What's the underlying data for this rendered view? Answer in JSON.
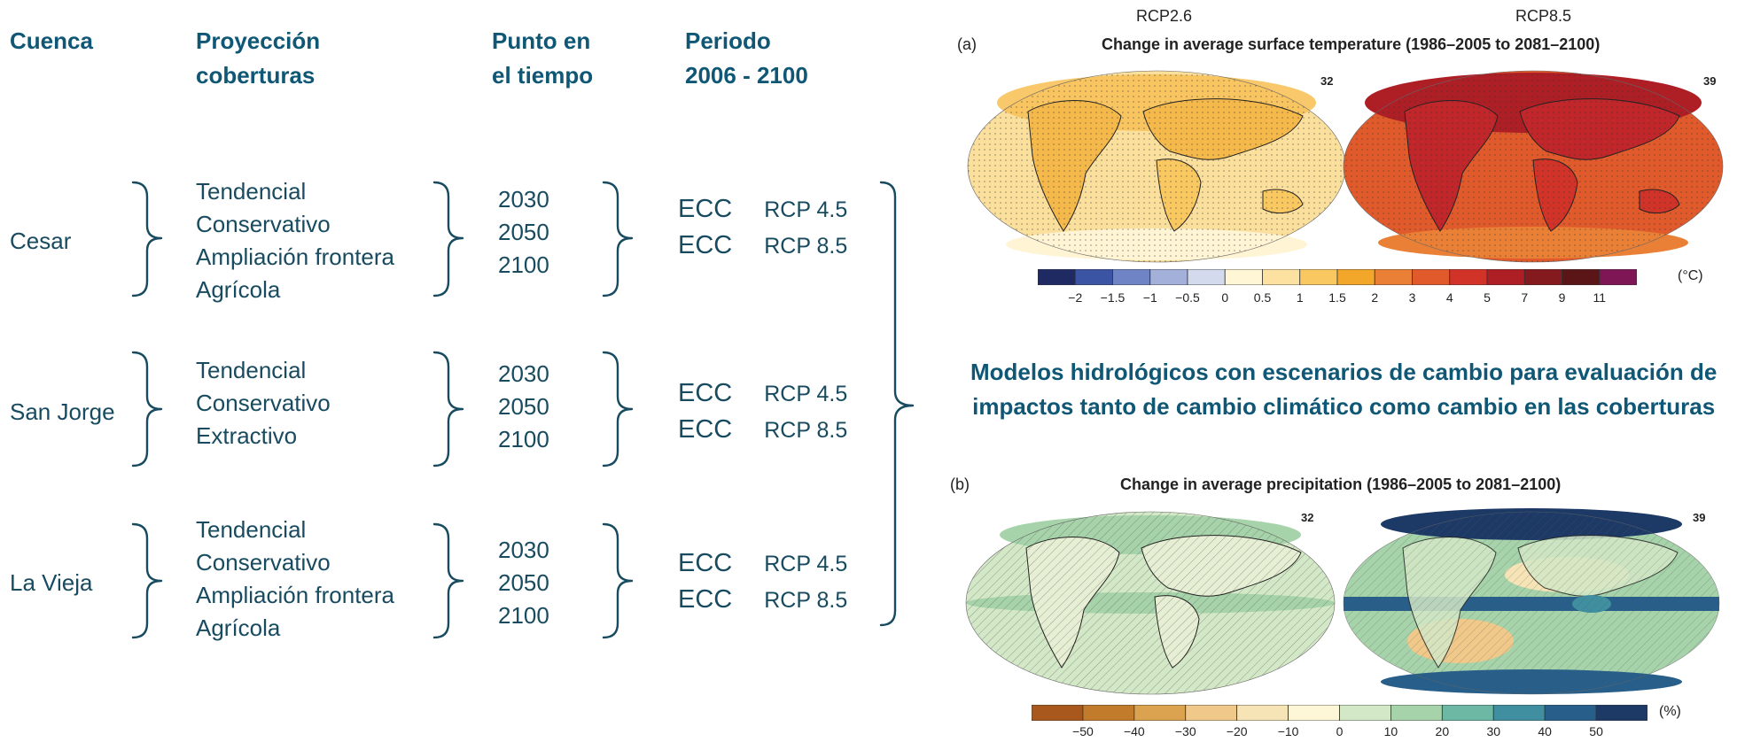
{
  "headers": {
    "cuenca": "Cuenca",
    "proyeccion": [
      "Proyección",
      "coberturas"
    ],
    "punto": [
      "Punto en",
      "el tiempo"
    ],
    "periodo": [
      "Periodo",
      "2006 -  2100"
    ]
  },
  "basins": [
    {
      "name": "Cesar",
      "coverages": [
        "Tendencial",
        "Conservativo",
        "Ampliación frontera",
        "Agrícola"
      ],
      "years": [
        "2030",
        "2050",
        "2100"
      ],
      "scenarios": [
        {
          "ecc": "ECC",
          "rcp": "RCP 4.5"
        },
        {
          "ecc": "ECC",
          "rcp": "RCP 8.5"
        }
      ]
    },
    {
      "name": "San Jorge",
      "coverages": [
        "Tendencial",
        "Conservativo",
        "Extractivo"
      ],
      "years": [
        "2030",
        "2050",
        "2100"
      ],
      "scenarios": [
        {
          "ecc": "ECC",
          "rcp": "RCP 4.5"
        },
        {
          "ecc": "ECC",
          "rcp": "RCP 8.5"
        }
      ]
    },
    {
      "name": "La Vieja",
      "coverages": [
        "Tendencial",
        "Conservativo",
        "Ampliación frontera",
        "Agrícola"
      ],
      "years": [
        "2030",
        "2050",
        "2100"
      ],
      "scenarios": [
        {
          "ecc": "ECC",
          "rcp": "RCP 4.5"
        },
        {
          "ecc": "ECC",
          "rcp": "RCP 8.5"
        }
      ]
    }
  ],
  "center_text": [
    "Modelos hidrológicos con escenarios de cambio para evaluación de",
    "impactos tanto de cambio climático como cambio en las coberturas"
  ],
  "maps": {
    "col_labels": [
      "RCP2.6",
      "RCP8.5"
    ],
    "temperature": {
      "panel": "(a)",
      "title": "Change in average surface temperature (1986–2005 to 2081–2100)",
      "counts": [
        "32",
        "39"
      ],
      "unit": "(°C)",
      "ticks": [
        "−2",
        "−1.5",
        "−1",
        "−0.5",
        "0",
        "0.5",
        "1",
        "1.5",
        "2",
        "3",
        "4",
        "5",
        "7",
        "9",
        "11"
      ],
      "colors": [
        "#1f2a63",
        "#3b54a4",
        "#6f84c4",
        "#a3b0d9",
        "#d3daee",
        "#fff6d5",
        "#fde1a0",
        "#f9c860",
        "#f2a72b",
        "#ea8035",
        "#e05a2b",
        "#d13328",
        "#ae1f25",
        "#841a1e",
        "#5c1517",
        "#7e1555"
      ]
    },
    "precipitation": {
      "panel": "(b)",
      "title": "Change in average precipitation (1986–2005 to 2081–2100)",
      "counts": [
        "32",
        "39"
      ],
      "unit": "(%)",
      "ticks": [
        "−50",
        "−40",
        "−30",
        "−20",
        "−10",
        "0",
        "10",
        "20",
        "30",
        "40",
        "50"
      ],
      "colors": [
        "#a8581d",
        "#c17b2b",
        "#dba350",
        "#f0c98a",
        "#f7e4b6",
        "#fdf7d8",
        "#d3e8c6",
        "#a6d3a9",
        "#6cb8a4",
        "#3f8fa0",
        "#285f8a",
        "#1d3a67"
      ]
    }
  }
}
